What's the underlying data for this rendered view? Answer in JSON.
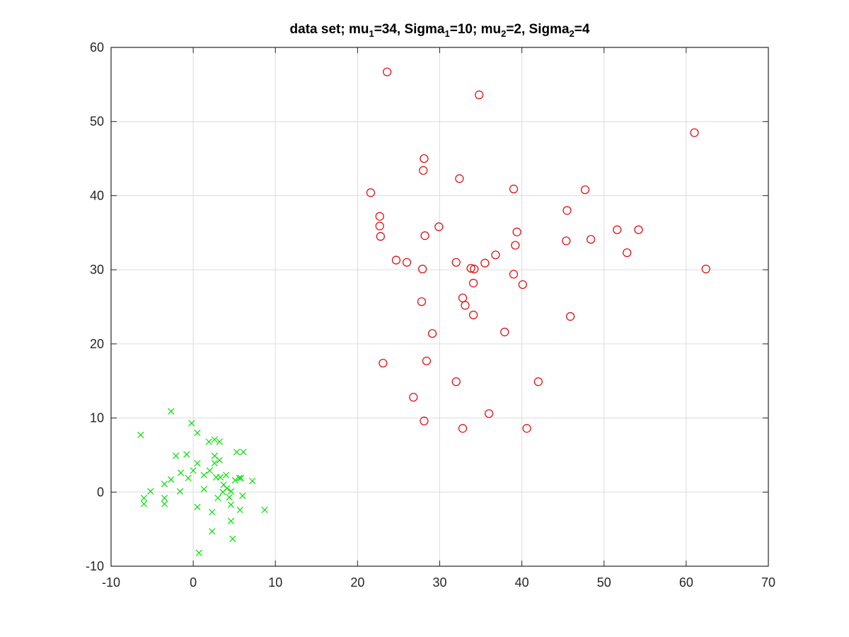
{
  "chart_data": {
    "type": "scatter",
    "title": {
      "parts": [
        {
          "text": "data set; mu",
          "sub": false
        },
        {
          "text": "1",
          "sub": true
        },
        {
          "text": "=34, Sigma",
          "sub": false
        },
        {
          "text": "1",
          "sub": true
        },
        {
          "text": "=10; mu",
          "sub": false
        },
        {
          "text": "2",
          "sub": true
        },
        {
          "text": "=2, Sigma",
          "sub": false
        },
        {
          "text": "2",
          "sub": true
        },
        {
          "text": "=4",
          "sub": false
        }
      ]
    },
    "xlabel": "",
    "ylabel": "",
    "xlim": [
      -10,
      70
    ],
    "ylim": [
      -10,
      60
    ],
    "xticks": [
      -10,
      0,
      10,
      20,
      30,
      40,
      50,
      60,
      70
    ],
    "yticks": [
      -10,
      0,
      10,
      20,
      30,
      40,
      50,
      60
    ],
    "grid": true,
    "box": true,
    "series": [
      {
        "marker": "o",
        "color": "#e00000",
        "points": [
          [
            23.6,
            56.7
          ],
          [
            34.8,
            53.6
          ],
          [
            61.0,
            48.5
          ],
          [
            28.1,
            45.0
          ],
          [
            28.0,
            43.4
          ],
          [
            32.4,
            42.3
          ],
          [
            21.6,
            40.4
          ],
          [
            39.0,
            40.9
          ],
          [
            47.7,
            40.8
          ],
          [
            22.7,
            37.2
          ],
          [
            22.7,
            35.9
          ],
          [
            22.8,
            34.5
          ],
          [
            28.2,
            34.6
          ],
          [
            29.9,
            35.8
          ],
          [
            39.4,
            35.1
          ],
          [
            45.5,
            38.0
          ],
          [
            51.6,
            35.4
          ],
          [
            54.2,
            35.4
          ],
          [
            39.2,
            33.3
          ],
          [
            45.4,
            33.9
          ],
          [
            48.4,
            34.1
          ],
          [
            52.8,
            32.3
          ],
          [
            36.8,
            32.0
          ],
          [
            24.7,
            31.3
          ],
          [
            26.0,
            31.0
          ],
          [
            32.0,
            31.0
          ],
          [
            35.5,
            30.9
          ],
          [
            62.4,
            30.1
          ],
          [
            27.9,
            30.1
          ],
          [
            33.8,
            30.2
          ],
          [
            34.2,
            30.1
          ],
          [
            34.1,
            28.2
          ],
          [
            39.0,
            29.4
          ],
          [
            40.1,
            28.0
          ],
          [
            27.8,
            25.7
          ],
          [
            32.8,
            26.2
          ],
          [
            33.1,
            25.2
          ],
          [
            34.1,
            23.9
          ],
          [
            45.9,
            23.7
          ],
          [
            29.1,
            21.4
          ],
          [
            37.9,
            21.6
          ],
          [
            23.1,
            17.4
          ],
          [
            28.4,
            17.7
          ],
          [
            32.0,
            14.9
          ],
          [
            42.0,
            14.9
          ],
          [
            26.8,
            12.8
          ],
          [
            36.0,
            10.6
          ],
          [
            28.1,
            9.6
          ],
          [
            32.8,
            8.6
          ],
          [
            40.6,
            8.6
          ]
        ]
      },
      {
        "marker": "x",
        "color": "#00e000",
        "points": [
          [
            -2.7,
            10.9
          ],
          [
            -0.2,
            9.3
          ],
          [
            0.5,
            8.0
          ],
          [
            -6.4,
            7.7
          ],
          [
            1.9,
            6.8
          ],
          [
            2.6,
            7.1
          ],
          [
            3.2,
            6.8
          ],
          [
            -2.1,
            4.9
          ],
          [
            -0.8,
            5.1
          ],
          [
            5.3,
            5.4
          ],
          [
            6.1,
            5.4
          ],
          [
            2.6,
            4.9
          ],
          [
            2.6,
            3.9
          ],
          [
            3.2,
            4.3
          ],
          [
            0.5,
            3.9
          ],
          [
            -1.5,
            2.6
          ],
          [
            0.0,
            2.9
          ],
          [
            1.3,
            2.3
          ],
          [
            2.0,
            2.9
          ],
          [
            2.8,
            2.0
          ],
          [
            3.3,
            2.0
          ],
          [
            4.0,
            2.3
          ],
          [
            5.1,
            1.6
          ],
          [
            5.6,
            1.9
          ],
          [
            5.8,
            1.9
          ],
          [
            7.2,
            1.5
          ],
          [
            -2.7,
            1.7
          ],
          [
            -0.6,
            1.9
          ],
          [
            -3.5,
            1.1
          ],
          [
            3.7,
            1.0
          ],
          [
            4.1,
            0.5
          ],
          [
            1.3,
            0.4
          ],
          [
            -1.6,
            0.1
          ],
          [
            -5.2,
            0.1
          ],
          [
            3.6,
            0.0
          ],
          [
            4.6,
            0.1
          ],
          [
            3.0,
            -0.8
          ],
          [
            4.4,
            -0.7
          ],
          [
            6.0,
            -0.5
          ],
          [
            -6.0,
            -0.8
          ],
          [
            -3.5,
            -0.8
          ],
          [
            -6.0,
            -1.6
          ],
          [
            -3.5,
            -1.6
          ],
          [
            4.6,
            -1.7
          ],
          [
            0.5,
            -2.0
          ],
          [
            5.7,
            -2.4
          ],
          [
            8.7,
            -2.4
          ],
          [
            2.3,
            -2.7
          ],
          [
            4.6,
            -3.9
          ],
          [
            2.3,
            -5.3
          ],
          [
            4.8,
            -6.3
          ],
          [
            0.7,
            -8.2
          ]
        ]
      }
    ]
  }
}
